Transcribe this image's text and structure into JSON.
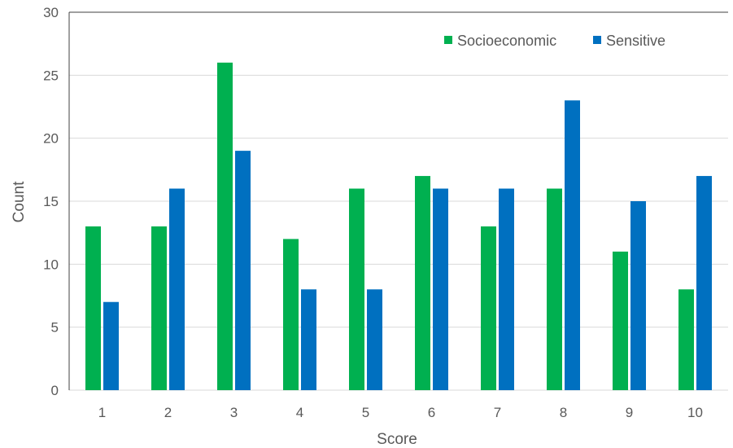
{
  "chart_data": {
    "type": "bar",
    "title": "",
    "xlabel": "Score",
    "ylabel": "Count",
    "categories": [
      "1",
      "2",
      "3",
      "4",
      "5",
      "6",
      "7",
      "8",
      "9",
      "10"
    ],
    "series": [
      {
        "name": "Socioeconomic",
        "color": "#00b050",
        "values": [
          13,
          13,
          26,
          12,
          16,
          17,
          13,
          16,
          11,
          8
        ]
      },
      {
        "name": "Sensitive",
        "color": "#0070c0",
        "values": [
          7,
          16,
          19,
          8,
          8,
          16,
          16,
          23,
          15,
          17
        ]
      }
    ],
    "ylim": [
      0,
      30
    ],
    "yticks": [
      0,
      5,
      10,
      15,
      20,
      25,
      30
    ],
    "grid": true,
    "legend_position": "top-right",
    "gridline_color": "#d9d9d9",
    "axis_color": "#404040"
  }
}
